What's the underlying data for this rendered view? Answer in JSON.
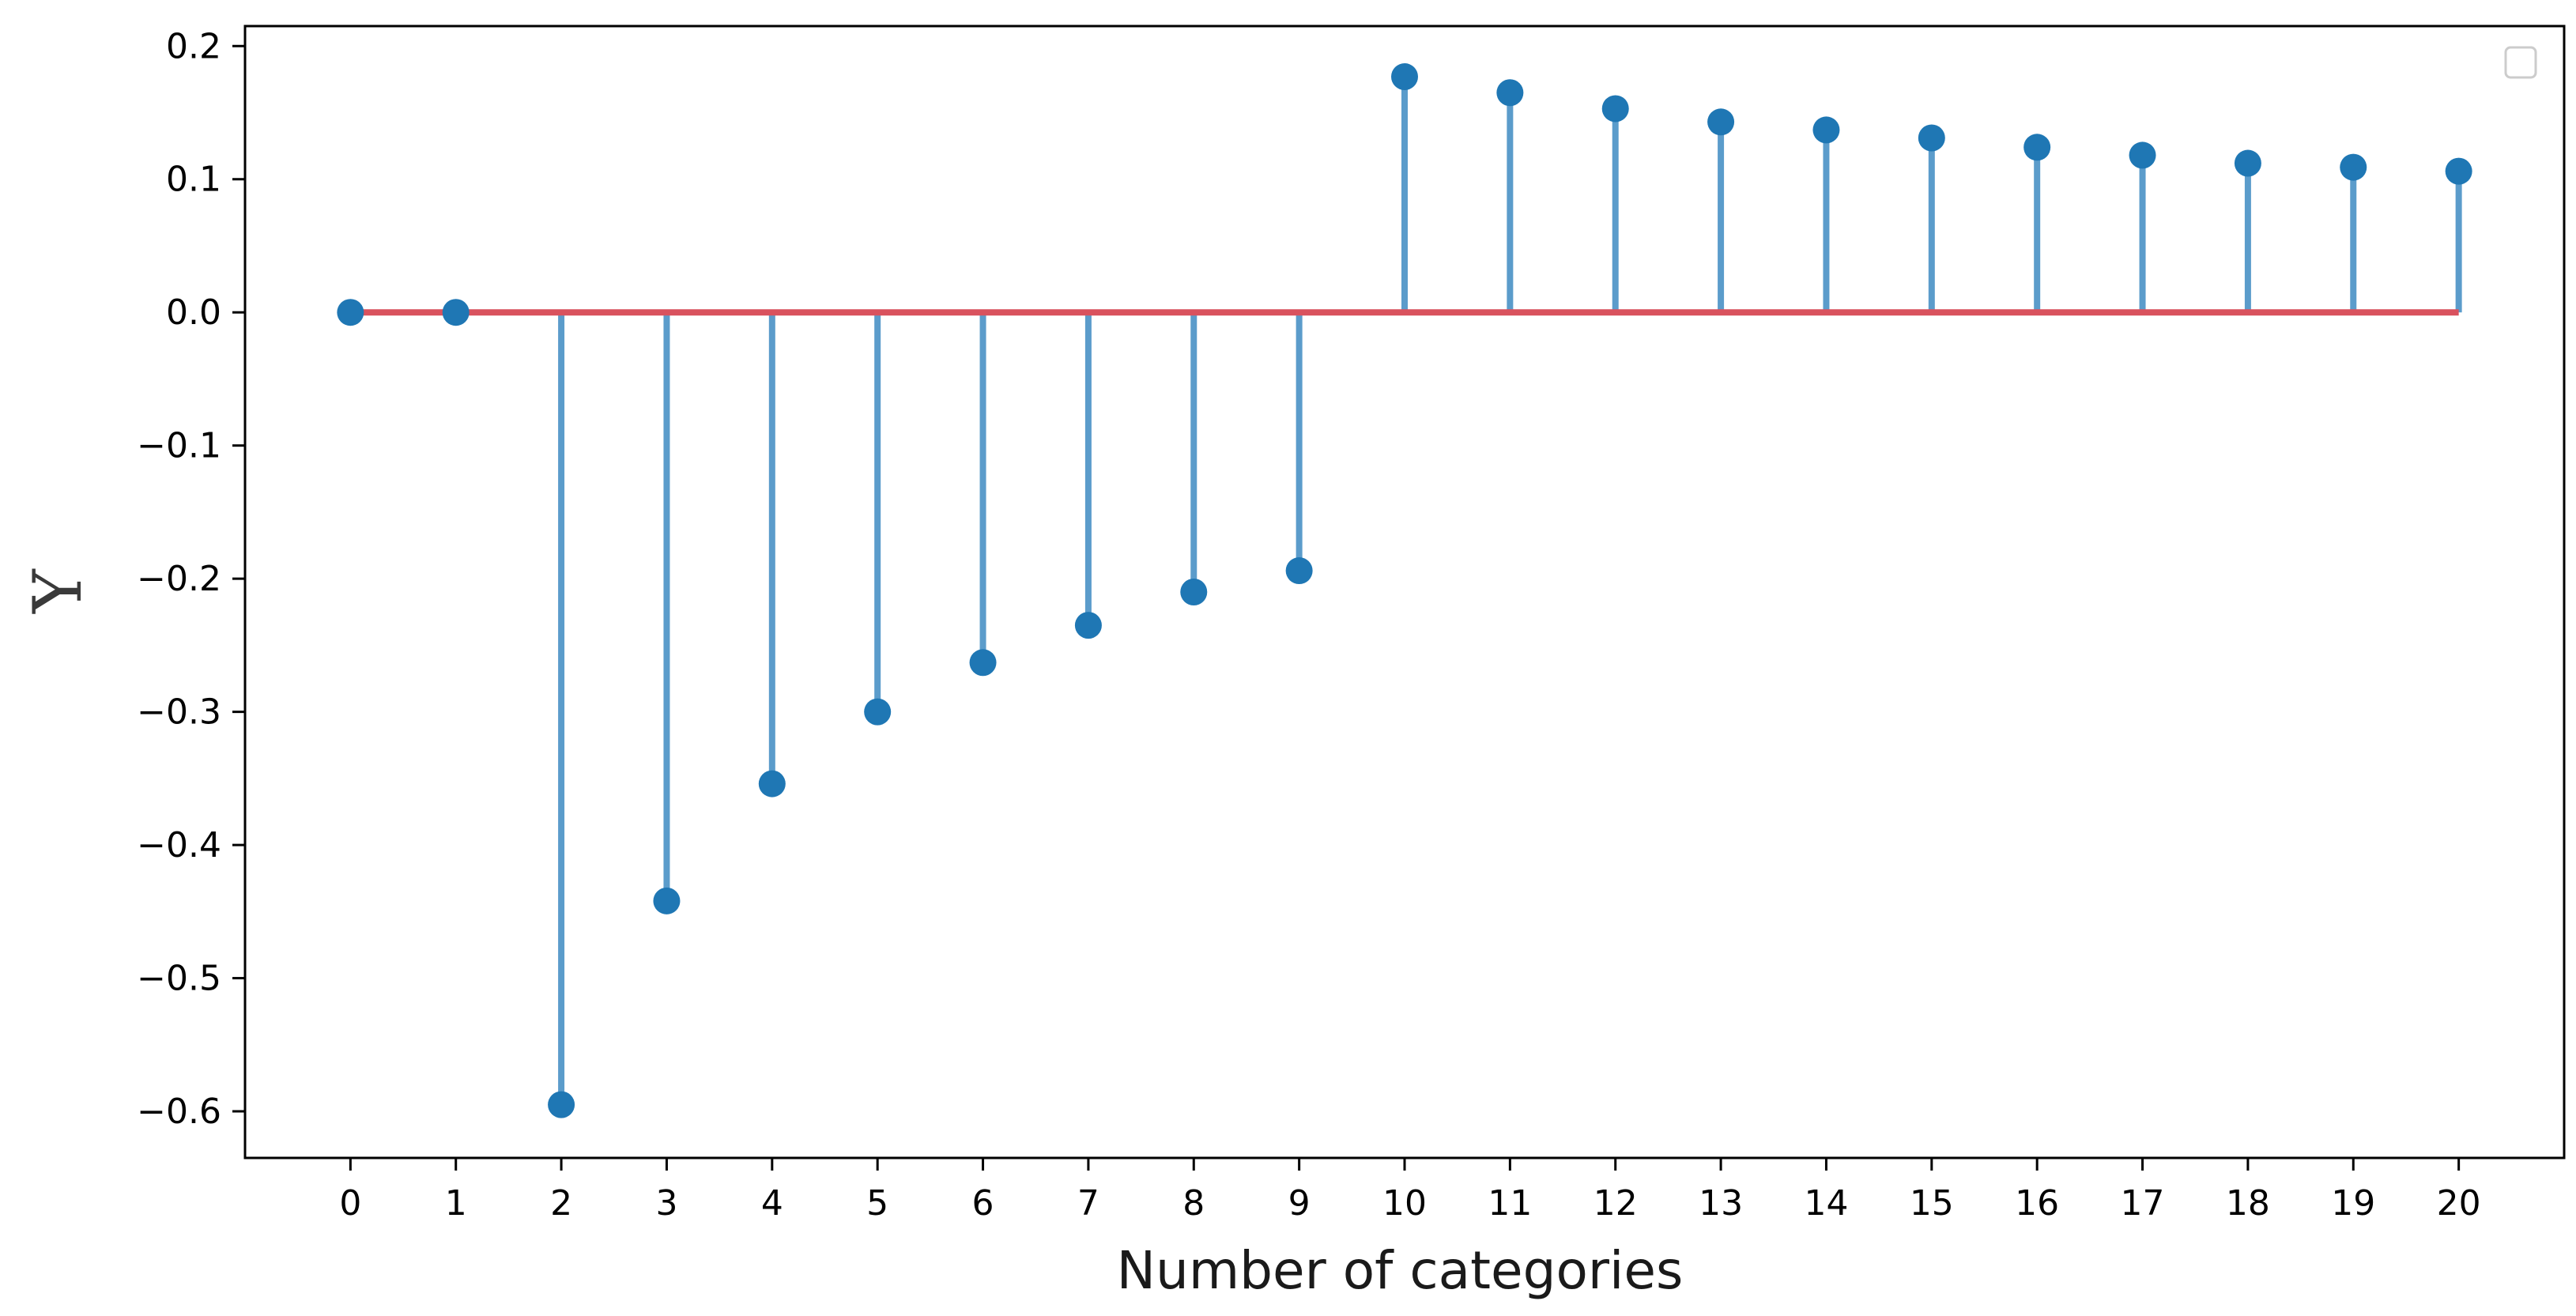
{
  "chart_data": {
    "type": "stem",
    "title": "",
    "xlabel": "Number of categories",
    "ylabel": "Υ",
    "x": [
      0,
      1,
      2,
      3,
      4,
      5,
      6,
      7,
      8,
      9,
      10,
      11,
      12,
      13,
      14,
      15,
      16,
      17,
      18,
      19,
      20
    ],
    "values": [
      0.0,
      0.0,
      -0.595,
      -0.442,
      -0.354,
      -0.3,
      -0.263,
      -0.235,
      -0.21,
      -0.194,
      0.177,
      0.165,
      0.153,
      0.143,
      0.137,
      0.131,
      0.124,
      0.118,
      0.112,
      0.109,
      0.106
    ],
    "xlim": [
      -1.0,
      21.0
    ],
    "ylim": [
      -0.635,
      0.215
    ],
    "xticks": [
      "0",
      "1",
      "2",
      "3",
      "4",
      "5",
      "6",
      "7",
      "8",
      "9",
      "10",
      "11",
      "12",
      "13",
      "14",
      "15",
      "16",
      "17",
      "18",
      "19",
      "20"
    ],
    "yticks": [
      {
        "value": 0.2,
        "label": "0.2"
      },
      {
        "value": 0.1,
        "label": "0.1"
      },
      {
        "value": 0.0,
        "label": "0.0"
      },
      {
        "value": -0.1,
        "label": "−0.1"
      },
      {
        "value": -0.2,
        "label": "−0.2"
      },
      {
        "value": -0.3,
        "label": "−0.3"
      },
      {
        "value": -0.4,
        "label": "−0.4"
      },
      {
        "value": -0.5,
        "label": "−0.5"
      },
      {
        "value": -0.6,
        "label": "−0.6"
      }
    ],
    "grid": false,
    "legend": {
      "position": "upper-right",
      "entries": []
    },
    "colors": {
      "stem": "#5b9ccb",
      "marker": "#1f77b4",
      "baseline": "#d9525e",
      "axes": "#000000"
    }
  }
}
